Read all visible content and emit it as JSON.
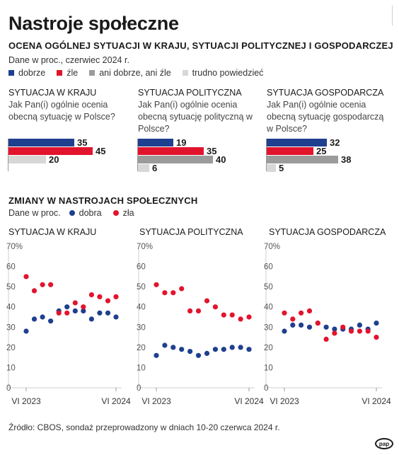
{
  "title": "Nastroje społeczne",
  "subtitle": "OCENA OGÓLNEJ SYTUACJI W KRAJU, SYTUACJI POLITYCZNEJ I GOSPODARCZEJ",
  "note": "Dane w proc., czerwiec 2024 r.",
  "legend": [
    {
      "label": "dobrze",
      "color": "#1f3f8f"
    },
    {
      "label": "źle",
      "color": "#e2142d"
    },
    {
      "label": "ani dobrze, ani źle",
      "color": "#9b9b9b"
    },
    {
      "label": "trudno powiedzieć",
      "color": "#d7d7d7"
    }
  ],
  "section": "ZMIANY W NASTROJACH SPOŁECZNYCH",
  "section_note": "Dane w proc.",
  "line_legend": [
    {
      "label": "dobra",
      "color": "#1f3f8f"
    },
    {
      "label": "zła",
      "color": "#e2142d"
    }
  ],
  "source": "Źródło: CBOS, sondaż przeprowadzony w dniach 10-20 czerwca 2024 r.",
  "logo": "pap",
  "chart_data": [
    {
      "type": "bar",
      "title": "SYTUACJA W KRAJU",
      "question": "Jak Pan(i) ogólnie ocenia obecną sytuację w Polsce?",
      "categories": [
        "dobrze",
        "źle",
        "trudno powiedzieć"
      ],
      "values": [
        35,
        45,
        20
      ],
      "colors": [
        "#1f3f8f",
        "#e2142d",
        "#d7d7d7"
      ]
    },
    {
      "type": "bar",
      "title": "SYTUACJA POLITYCZNA",
      "question": "Jak Pan(i) ogólnie ocenia obecną sytuację polityczną w Polsce?",
      "categories": [
        "dobrze",
        "źle",
        "ani dobrze, ani źle",
        "trudno powiedzieć"
      ],
      "values": [
        19,
        35,
        40,
        6
      ],
      "colors": [
        "#1f3f8f",
        "#e2142d",
        "#9b9b9b",
        "#d7d7d7"
      ]
    },
    {
      "type": "bar",
      "title": "SYTUACJA GOSPODARCZA",
      "question": "Jak Pan(i) ogólnie ocenia obecną sytuację gospodarczą w Polsce?",
      "categories": [
        "dobrze",
        "źle",
        "ani dobrze, ani źle",
        "trudno powiedzieć"
      ],
      "values": [
        32,
        25,
        38,
        5
      ],
      "colors": [
        "#1f3f8f",
        "#e2142d",
        "#9b9b9b",
        "#d7d7d7"
      ]
    },
    {
      "type": "scatter",
      "title": "SYTUACJA W KRAJU",
      "x_labels": [
        "VI 2023",
        "VI 2024"
      ],
      "yticks": [
        "70%",
        "60",
        "50",
        "40",
        "30",
        "20",
        "10",
        "0"
      ],
      "ylim": [
        0,
        70
      ],
      "series": [
        {
          "name": "dobra",
          "color": "#1f3f8f",
          "values": [
            28,
            34,
            35,
            33,
            38,
            40,
            38,
            38,
            34,
            37,
            37,
            35
          ]
        },
        {
          "name": "zła",
          "color": "#e2142d",
          "values": [
            55,
            48,
            51,
            51,
            37,
            37,
            42,
            40,
            46,
            45,
            43,
            45
          ]
        }
      ]
    },
    {
      "type": "scatter",
      "title": "SYTUACJA POLITYCZNA",
      "x_labels": [
        "VI 2023",
        "VI 2024"
      ],
      "yticks": [
        "70%",
        "60",
        "50",
        "40",
        "30",
        "20",
        "10",
        "0"
      ],
      "ylim": [
        0,
        70
      ],
      "series": [
        {
          "name": "dobra",
          "color": "#1f3f8f",
          "values": [
            16,
            21,
            20,
            19,
            18,
            16,
            17,
            19,
            19,
            20,
            20,
            19
          ]
        },
        {
          "name": "zła",
          "color": "#e2142d",
          "values": [
            51,
            47,
            47,
            49,
            38,
            38,
            43,
            40,
            36,
            36,
            34,
            35
          ]
        }
      ]
    },
    {
      "type": "scatter",
      "title": "SYTUACJA GOSPODARCZA",
      "x_labels": [
        "VI 2023",
        "VI 2024"
      ],
      "yticks": [
        "70%",
        "60",
        "50",
        "40",
        "30",
        "20",
        "10",
        "0"
      ],
      "ylim": [
        0,
        70
      ],
      "series": [
        {
          "name": "dobra",
          "color": "#1f3f8f",
          "values": [
            28,
            31,
            31,
            30,
            32,
            30,
            29,
            29,
            29,
            31,
            29,
            32
          ]
        },
        {
          "name": "zła",
          "color": "#e2142d",
          "values": [
            37,
            34,
            37,
            38,
            32,
            24,
            27,
            30,
            28,
            28,
            28,
            25
          ]
        }
      ]
    }
  ]
}
